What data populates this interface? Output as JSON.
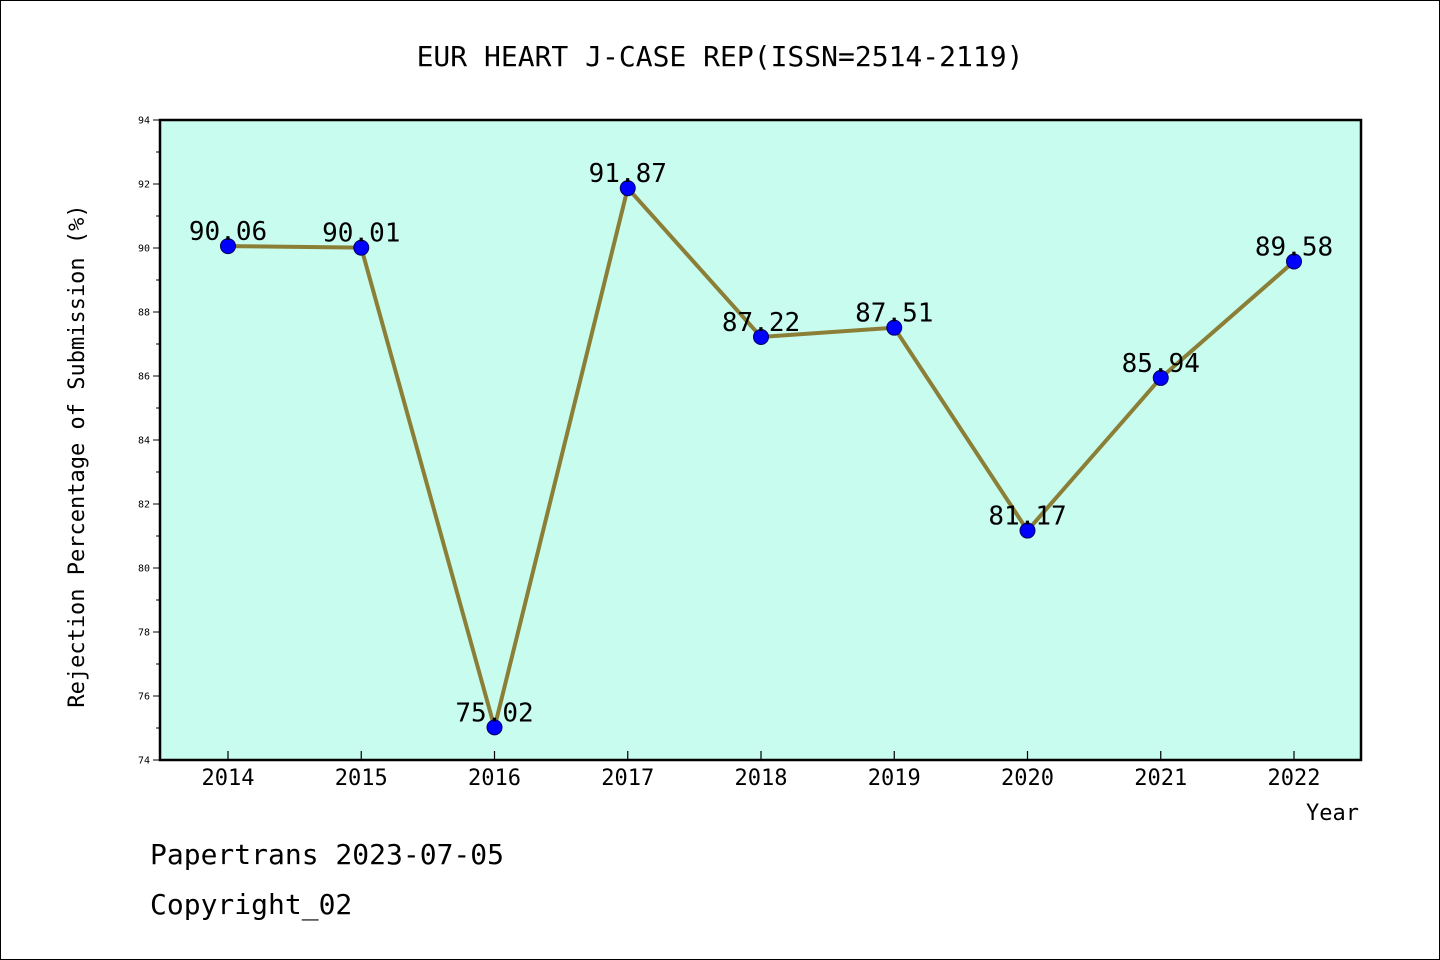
{
  "chart_data": {
    "type": "line",
    "title": "EUR HEART J-CASE REP(ISSN=2514-2119)",
    "xlabel": "Year",
    "ylabel": "Rejection Percentage of Submission (%)",
    "categories": [
      "2014",
      "2015",
      "2016",
      "2017",
      "2018",
      "2019",
      "2020",
      "2021",
      "2022"
    ],
    "series": [
      {
        "values": [
          90.06,
          90.01,
          75.02,
          91.87,
          87.22,
          87.51,
          81.17,
          85.94,
          89.58
        ]
      }
    ],
    "data_labels": [
      "90.06",
      "90.01",
      "75.02",
      "91.87",
      "87.22",
      "87.51",
      "81.17",
      "85.94",
      "89.58"
    ],
    "ylim": [
      74,
      94
    ],
    "yticks": [
      "74",
      "76",
      "78",
      "80",
      "82",
      "84",
      "86",
      "88",
      "90",
      "92",
      "94"
    ],
    "grid": false,
    "colors": {
      "plot_background": "#c8fcee",
      "line": "#8b7f37",
      "marker": "#0000ff"
    }
  },
  "footer": {
    "line1": "Papertrans 2023-07-05",
    "line2": "Copyright_02"
  }
}
